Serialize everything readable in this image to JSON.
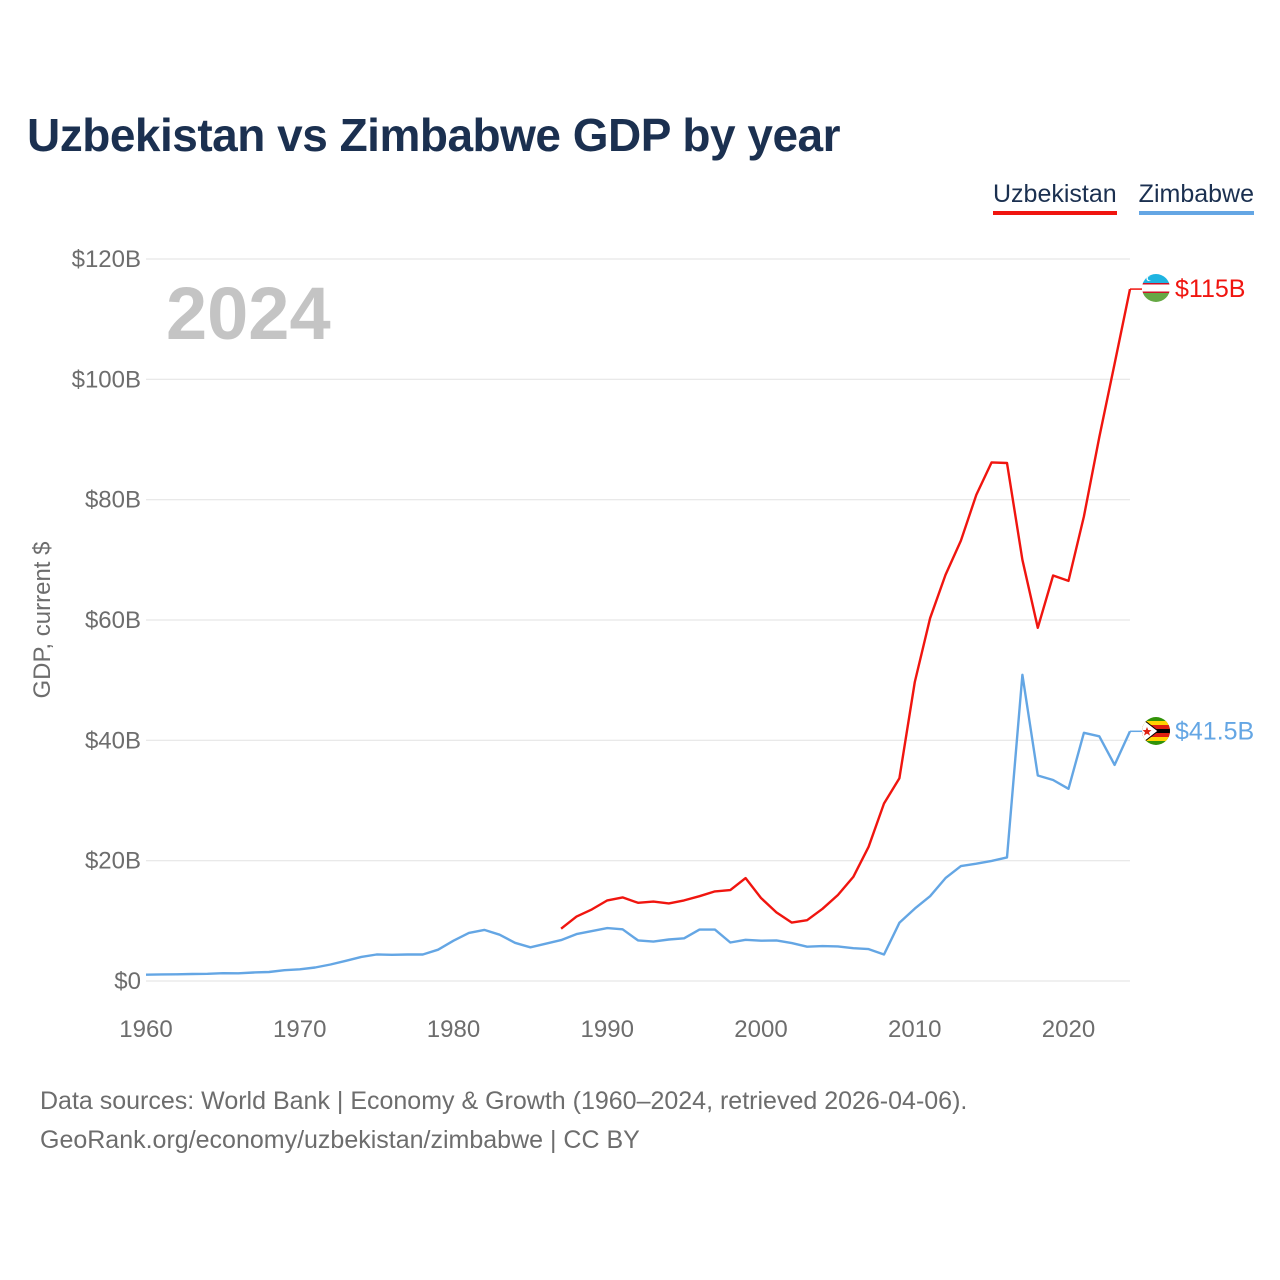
{
  "title": "Uzbekistan vs Zimbabwe GDP by year",
  "legend": [
    {
      "name": "Uzbekistan",
      "color": "#f0150f"
    },
    {
      "name": "Zimbabwe",
      "color": "#64a6e4"
    }
  ],
  "footer": {
    "line1": "Data sources: World Bank | Economy & Growth (1960–2024, retrieved 2026-04-06).",
    "line2": "GeoRank.org/economy/uzbekistan/zimbabwe | CC BY"
  },
  "chart_data": {
    "type": "line",
    "title": "Uzbekistan vs Zimbabwe GDP by year",
    "xlabel": "",
    "ylabel": "GDP, current $",
    "xlim": [
      1960,
      2024
    ],
    "ylim": [
      0,
      120
    ],
    "y_unit": "billion USD",
    "xticks": [
      1960,
      1970,
      1980,
      1990,
      2000,
      2010,
      2020
    ],
    "yticks": [
      0,
      20,
      40,
      60,
      80,
      100,
      120
    ],
    "ytick_labels": [
      "$0",
      "$20B",
      "$40B",
      "$60B",
      "$80B",
      "$100B",
      "$120B"
    ],
    "year_watermark": "2024",
    "grid": true,
    "legend_position": "top-right",
    "series": [
      {
        "name": "Uzbekistan",
        "color": "#f0150f",
        "end_label": "$115B",
        "flag_icon": "uzbekistan-flag-icon",
        "x": [
          1987,
          1988,
          1989,
          1990,
          1991,
          1992,
          1993,
          1994,
          1995,
          1996,
          1997,
          1998,
          1999,
          2000,
          2001,
          2002,
          2003,
          2004,
          2005,
          2006,
          2007,
          2008,
          2009,
          2010,
          2011,
          2012,
          2013,
          2014,
          2015,
          2016,
          2017,
          2018,
          2019,
          2020,
          2021,
          2022,
          2023,
          2024
        ],
        "y": [
          8.7,
          10.7,
          11.9,
          13.4,
          13.9,
          13.0,
          13.2,
          12.9,
          13.4,
          14.1,
          14.9,
          15.1,
          17.1,
          13.8,
          11.4,
          9.7,
          10.1,
          12.0,
          14.3,
          17.3,
          22.3,
          29.5,
          33.7,
          49.7,
          60.3,
          67.5,
          73.2,
          80.8,
          86.2,
          86.1,
          70.0,
          58.7,
          67.4,
          66.5,
          77.2,
          90.4,
          102.6,
          115.0
        ]
      },
      {
        "name": "Zimbabwe",
        "color": "#64a6e4",
        "end_label": "$41.5B",
        "flag_icon": "zimbabwe-flag-icon",
        "x": [
          1960,
          1961,
          1962,
          1963,
          1964,
          1965,
          1966,
          1967,
          1968,
          1969,
          1970,
          1971,
          1972,
          1973,
          1974,
          1975,
          1976,
          1977,
          1978,
          1979,
          1980,
          1981,
          1982,
          1983,
          1984,
          1985,
          1986,
          1987,
          1988,
          1989,
          1990,
          1991,
          1992,
          1993,
          1994,
          1995,
          1996,
          1997,
          1998,
          1999,
          2000,
          2001,
          2002,
          2003,
          2004,
          2005,
          2006,
          2007,
          2008,
          2009,
          2010,
          2011,
          2012,
          2013,
          2014,
          2015,
          2016,
          2017,
          2018,
          2019,
          2020,
          2021,
          2022,
          2023,
          2024
        ],
        "y": [
          1.05,
          1.1,
          1.12,
          1.16,
          1.2,
          1.3,
          1.28,
          1.42,
          1.5,
          1.8,
          1.95,
          2.25,
          2.75,
          3.35,
          4.0,
          4.4,
          4.35,
          4.4,
          4.4,
          5.2,
          6.7,
          8.0,
          8.5,
          7.7,
          6.35,
          5.6,
          6.2,
          6.8,
          7.8,
          8.3,
          8.8,
          8.6,
          6.75,
          6.55,
          6.9,
          7.1,
          8.55,
          8.55,
          6.4,
          6.85,
          6.7,
          6.75,
          6.3,
          5.7,
          5.8,
          5.75,
          5.45,
          5.3,
          4.4,
          9.67,
          12.04,
          14.1,
          17.11,
          19.09,
          19.5,
          19.96,
          20.55,
          50.9,
          34.16,
          33.4,
          31.94,
          41.26,
          40.67,
          35.91,
          41.5
        ]
      }
    ]
  }
}
